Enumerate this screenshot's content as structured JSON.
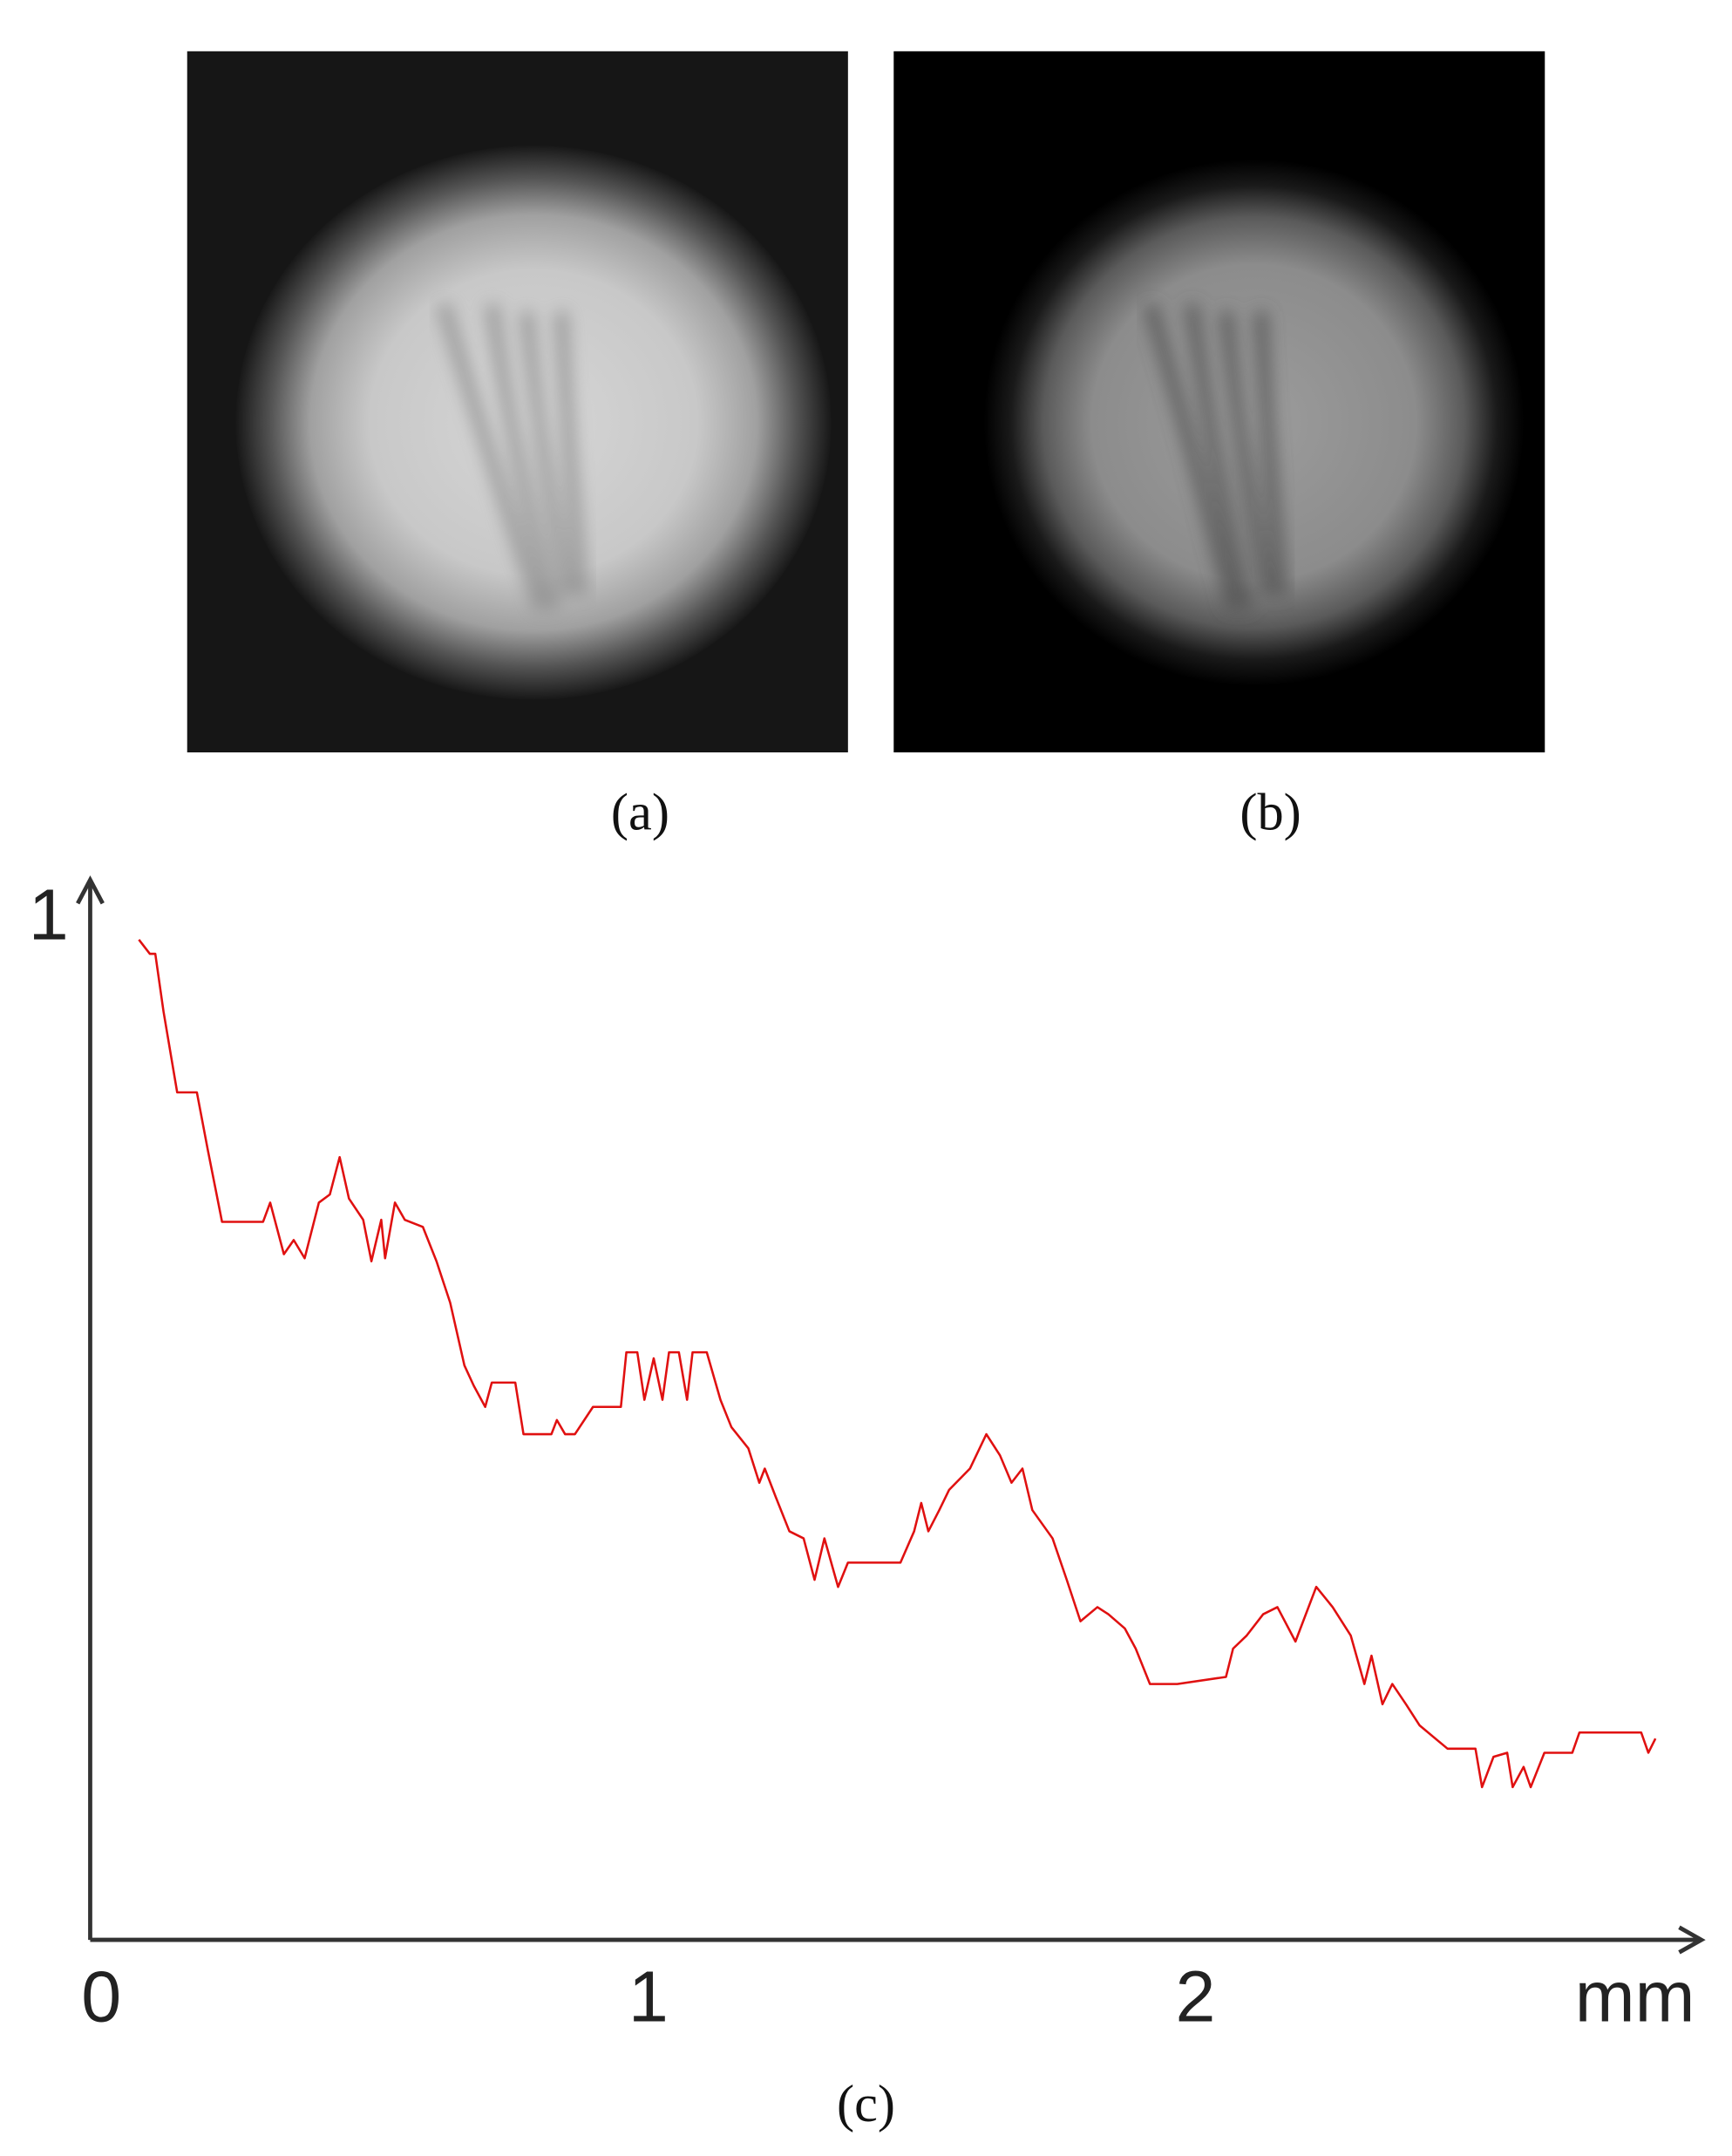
{
  "panels": {
    "a": "(a)",
    "b": "(b)"
  },
  "chart_data": {
    "type": "line",
    "caption": "(c)",
    "x_label": "mm",
    "color": "#e01010",
    "xlim": [
      0,
      2.95
    ],
    "ylim": [
      0,
      1.055
    ],
    "xticks": [
      0,
      1,
      2
    ],
    "yticks": [
      1
    ],
    "x": [
      0.089,
      0.109,
      0.119,
      0.134,
      0.159,
      0.195,
      0.215,
      0.241,
      0.316,
      0.329,
      0.354,
      0.372,
      0.392,
      0.418,
      0.438,
      0.456,
      0.473,
      0.499,
      0.514,
      0.532,
      0.539,
      0.557,
      0.575,
      0.608,
      0.633,
      0.658,
      0.684,
      0.701,
      0.722,
      0.734,
      0.777,
      0.792,
      0.843,
      0.853,
      0.868,
      0.886,
      0.919,
      0.97,
      0.98,
      1.0,
      1.013,
      1.03,
      1.046,
      1.058,
      1.076,
      1.091,
      1.101,
      1.127,
      1.152,
      1.172,
      1.203,
      1.223,
      1.233,
      1.253,
      1.278,
      1.304,
      1.324,
      1.342,
      1.367,
      1.385,
      1.481,
      1.506,
      1.519,
      1.532,
      1.552,
      1.57,
      1.608,
      1.638,
      1.663,
      1.684,
      1.704,
      1.722,
      1.759,
      1.785,
      1.81,
      1.841,
      1.861,
      1.891,
      1.911,
      1.937,
      1.987,
      2.076,
      2.089,
      2.114,
      2.144,
      2.17,
      2.203,
      2.241,
      2.271,
      2.304,
      2.329,
      2.342,
      2.362,
      2.38,
      2.405,
      2.43,
      2.481,
      2.532,
      2.544,
      2.565,
      2.59,
      2.6,
      2.62,
      2.633,
      2.658,
      2.709,
      2.722,
      2.835,
      2.848,
      2.861
    ],
    "values": [
      0.989,
      0.975,
      0.975,
      0.918,
      0.838,
      0.838,
      0.781,
      0.71,
      0.71,
      0.729,
      0.678,
      0.692,
      0.674,
      0.729,
      0.737,
      0.774,
      0.733,
      0.712,
      0.671,
      0.712,
      0.674,
      0.729,
      0.712,
      0.705,
      0.671,
      0.63,
      0.568,
      0.548,
      0.527,
      0.551,
      0.551,
      0.5,
      0.5,
      0.514,
      0.5,
      0.5,
      0.527,
      0.527,
      0.581,
      0.581,
      0.534,
      0.575,
      0.534,
      0.581,
      0.581,
      0.534,
      0.581,
      0.581,
      0.534,
      0.507,
      0.486,
      0.452,
      0.466,
      0.438,
      0.404,
      0.397,
      0.356,
      0.397,
      0.349,
      0.373,
      0.373,
      0.404,
      0.432,
      0.404,
      0.425,
      0.445,
      0.466,
      0.5,
      0.479,
      0.452,
      0.466,
      0.425,
      0.397,
      0.356,
      0.315,
      0.329,
      0.322,
      0.308,
      0.288,
      0.253,
      0.253,
      0.26,
      0.288,
      0.301,
      0.322,
      0.329,
      0.295,
      0.349,
      0.329,
      0.301,
      0.253,
      0.281,
      0.233,
      0.253,
      0.233,
      0.212,
      0.189,
      0.189,
      0.151,
      0.181,
      0.185,
      0.151,
      0.171,
      0.151,
      0.185,
      0.185,
      0.205,
      0.205,
      0.185,
      0.199
    ]
  }
}
